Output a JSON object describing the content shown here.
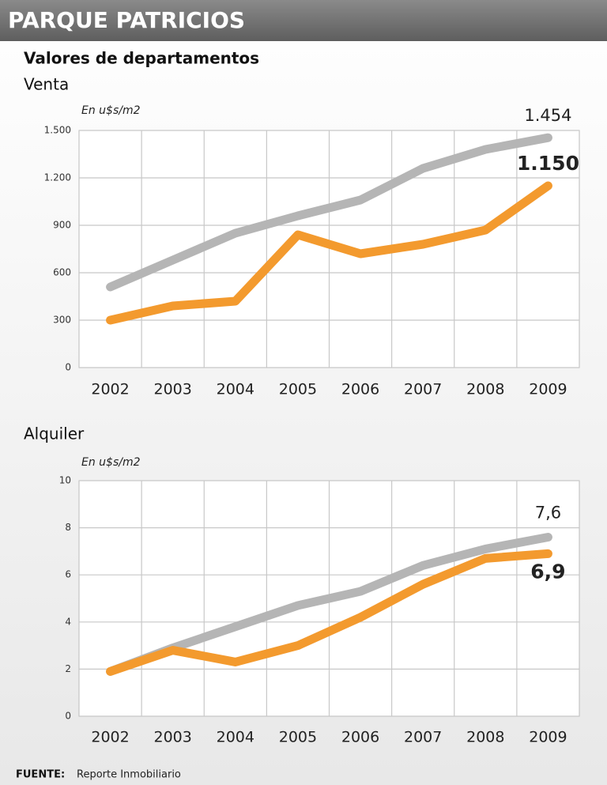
{
  "header": {
    "title": "PARQUE PATRICIOS",
    "subtitle": "Valores de departamentos"
  },
  "chart_data": [
    {
      "type": "line",
      "title": "Venta",
      "y_label": "En u$s/m2",
      "categories": [
        "2002",
        "2003",
        "2004",
        "2005",
        "2006",
        "2007",
        "2008",
        "2009"
      ],
      "ylim": [
        0,
        1500
      ],
      "yticks": [
        0,
        300,
        600,
        900,
        {
          "value": 1200,
          "label": "1.200"
        },
        {
          "value": 1500,
          "label": "1.500"
        }
      ],
      "grid": true,
      "series": [
        {
          "color": "#b5b5b5",
          "values": [
            510,
            680,
            850,
            960,
            1060,
            1260,
            1380,
            1454
          ],
          "value_labels": [
            null,
            null,
            null,
            null,
            null,
            null,
            null,
            "1.454"
          ]
        },
        {
          "color": "#f39a2e",
          "values": [
            300,
            390,
            420,
            840,
            720,
            780,
            870,
            1150
          ],
          "value_labels": [
            null,
            null,
            null,
            null,
            null,
            null,
            null,
            "1.150"
          ]
        }
      ]
    },
    {
      "type": "line",
      "title": "Alquiler",
      "y_label": "En u$s/m2",
      "categories": [
        "2002",
        "2003",
        "2004",
        "2005",
        "2006",
        "2007",
        "2008",
        "2009"
      ],
      "ylim": [
        0,
        10
      ],
      "yticks": [
        0,
        2,
        4,
        6,
        8,
        10
      ],
      "grid": true,
      "series": [
        {
          "color": "#b5b5b5",
          "values": [
            1.9,
            2.9,
            3.8,
            4.7,
            5.3,
            6.4,
            7.1,
            7.6
          ],
          "value_labels": [
            null,
            null,
            null,
            null,
            null,
            null,
            null,
            "7,6"
          ]
        },
        {
          "color": "#f39a2e",
          "values": [
            1.9,
            2.8,
            2.3,
            3.0,
            4.2,
            5.6,
            6.7,
            6.9
          ],
          "value_labels": [
            null,
            null,
            null,
            null,
            null,
            null,
            null,
            "6,9"
          ]
        }
      ]
    }
  ],
  "footer": {
    "label": "FUENTE:",
    "source": "Reporte Inmobiliario"
  }
}
